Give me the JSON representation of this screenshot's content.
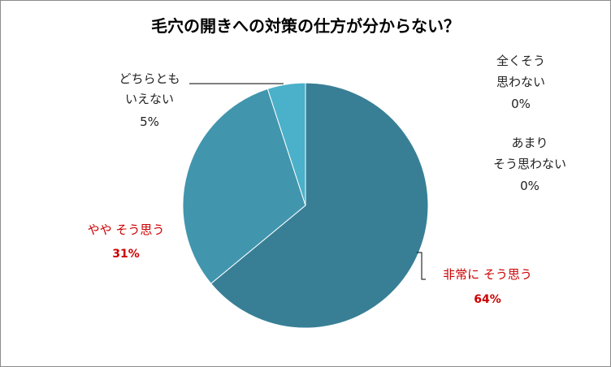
{
  "chart_data": {
    "type": "pie",
    "title": "毛穴の開きへの対策の仕方が分からない？",
    "categories": [
      "非常にそう思う",
      "ややそう思う",
      "どちらともいえない",
      "あまりそう思わない",
      "全くそう思わない"
    ],
    "values": [
      64,
      31,
      5,
      0,
      0
    ],
    "unit": "%",
    "labels": {
      "strong_agree": {
        "line1": "非常に そう思う",
        "pct": "64%"
      },
      "agree": {
        "line1": "やや そう思う",
        "pct": "31%"
      },
      "neutral": {
        "line1": "どちらとも",
        "line2": "いえない",
        "pct": "5%"
      },
      "disagree": {
        "line1": "あまり",
        "line2": "そう思わない",
        "pct": "0%"
      },
      "strong_disagree": {
        "line1": "全くそう",
        "line2": "思わない",
        "pct": "0%"
      }
    },
    "colors": [
      "#387f96",
      "#4196ae",
      "#4bb0c9",
      "#6fc3d8",
      "#9fd8e6"
    ],
    "emphasis_color": "#cc0000",
    "legend": "none"
  }
}
